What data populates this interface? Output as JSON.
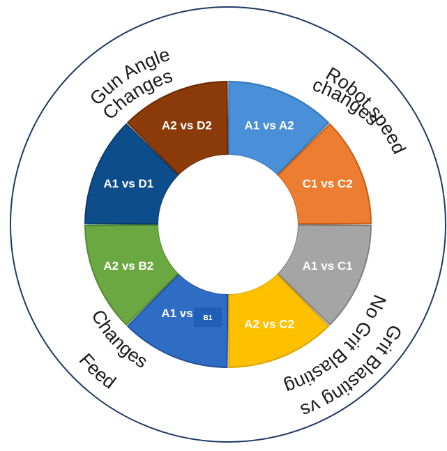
{
  "segments": [
    {
      "label": "A1 vs A2",
      "color": "#4A90D9",
      "stroke": "#2E75B6"
    },
    {
      "label": "C1 vs C2",
      "color": "#ED7D31",
      "stroke": "#C55A11"
    },
    {
      "label": "A1 vs C1",
      "color": "#A5A5A5",
      "stroke": "#7F7F7F"
    },
    {
      "label": "A2 vs C2",
      "color": "#FFC000",
      "stroke": "#D9A300"
    },
    {
      "label": "A1 vs",
      "color": "#2F6CC4",
      "stroke": "#1F4E9A"
    },
    {
      "label": "A2 vs B2",
      "color": "#6BA842",
      "stroke": "#4E8A2E"
    },
    {
      "label": "A1 vs D1",
      "color": "#0D4D8C",
      "stroke": "#0A3A6B"
    },
    {
      "label": "A2 vs D2",
      "color": "#8B3A0A",
      "stroke": "#6B2A05"
    }
  ],
  "tag": {
    "label": "B1",
    "color": "#1F5FB8"
  },
  "outer_labels": {
    "robot_speed_line1": "Robot speed",
    "robot_speed_line2": "changes",
    "gun_angle_line1": "Gun Angle",
    "gun_angle_line2": "Changes",
    "grit_line1": "No Grit Blasting",
    "grit_line2": "Grit Blasting vs",
    "feed_line1": "Changes",
    "feed_line2": "Feed"
  },
  "colors": {
    "ring_stroke": "#1F3864",
    "background": "#FFFFFF"
  }
}
